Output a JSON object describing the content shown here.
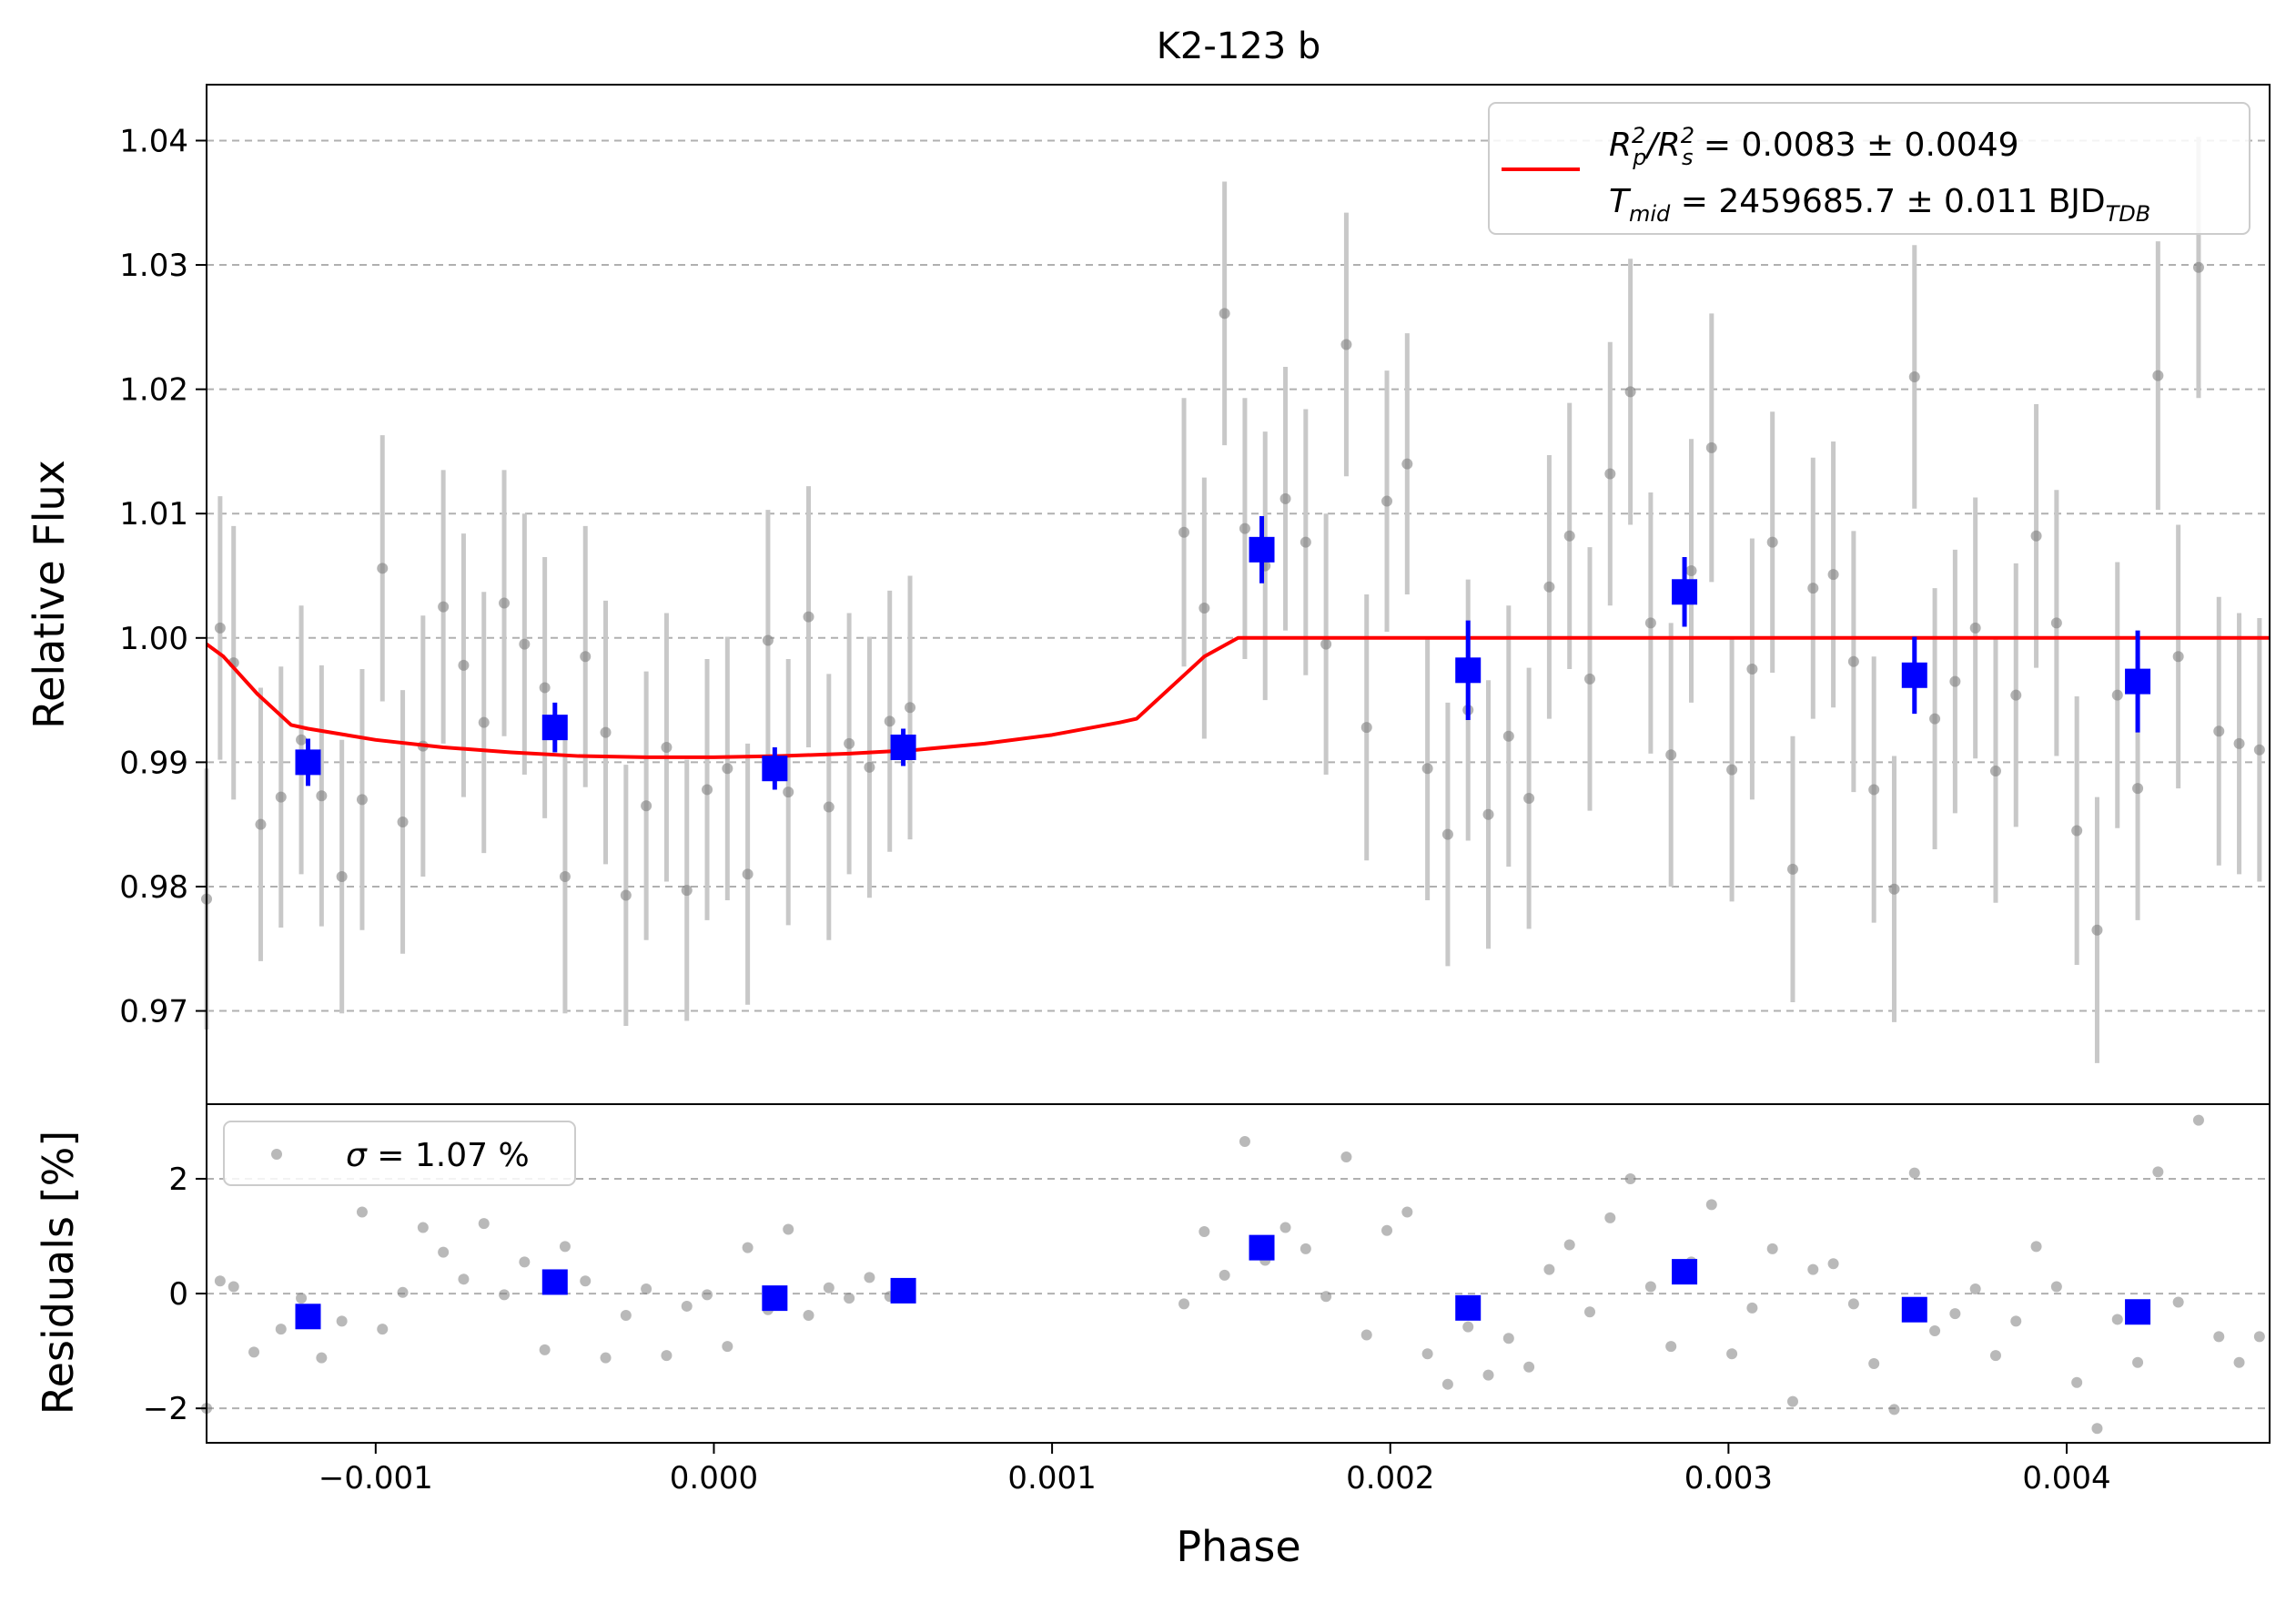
{
  "chart_data": {
    "type": "scatter",
    "title": "K2-123 b",
    "xlabel": "Phase",
    "x_ticks": [
      -0.001,
      0.0,
      0.001,
      0.002,
      0.003,
      0.004
    ],
    "x_tick_labels": [
      "−0.001",
      "0.000",
      "0.001",
      "0.002",
      "0.003",
      "0.004"
    ],
    "xlim": [
      -0.0015,
      0.0046
    ],
    "grid": "horizontal dashed",
    "top_panel": {
      "ylabel": "Relative Flux",
      "ylim": [
        0.9625,
        1.0445
      ],
      "y_ticks": [
        0.97,
        0.98,
        0.99,
        1.0,
        1.01,
        1.02,
        1.03,
        1.04
      ],
      "y_tick_labels": [
        "0.97",
        "0.98",
        "0.99",
        "1.00",
        "1.01",
        "1.02",
        "1.03",
        "1.04"
      ],
      "legend": {
        "placement": "top-right",
        "rp_rs": {
          "R": "R",
          "p": "p",
          "slash": "/",
          "R2": "R",
          "s": "s",
          "sq": "2",
          "rest": " = 0.0083 ± 0.0049"
        },
        "tmid": {
          "T": "T",
          "mid": "mid",
          "rest": " = 2459685.7 ± 0.011 BJD",
          "tdb": "TDB"
        }
      },
      "model": {
        "color": "#ff0000",
        "x": [
          -0.00151,
          -0.00145,
          -0.00135,
          -0.00125,
          -0.0012,
          -0.001,
          -0.0008,
          -0.0006,
          -0.0004,
          -0.0002,
          0.0,
          0.0002,
          0.0004,
          0.0006,
          0.0008,
          0.001,
          0.0012,
          0.00125,
          0.00135,
          0.00145,
          0.00155,
          0.002,
          0.0025,
          0.003,
          0.0035,
          0.004,
          0.0046
        ],
        "y": [
          0.9995,
          0.9985,
          0.9955,
          0.993,
          0.9927,
          0.9918,
          0.9912,
          0.9908,
          0.9905,
          0.9904,
          0.9904,
          0.9905,
          0.9907,
          0.991,
          0.9915,
          0.9922,
          0.9932,
          0.9935,
          0.996,
          0.9985,
          1.0,
          1.0,
          1.0,
          1.0,
          1.0,
          1.0,
          1.0
        ]
      },
      "data": {
        "color": "#808080",
        "err_color": "#c8c8c8",
        "x": [
          -0.0015,
          -0.00146,
          -0.00142,
          -0.00134,
          -0.00128,
          -0.00122,
          -0.00116,
          -0.0011,
          -0.00104,
          -0.00098,
          -0.00092,
          -0.00086,
          -0.0008,
          -0.00074,
          -0.00068,
          -0.00062,
          -0.00056,
          -0.0005,
          -0.00044,
          -0.00038,
          -0.00032,
          -0.00026,
          -0.0002,
          -0.00014,
          -8e-05,
          -2e-05,
          4e-05,
          0.0001,
          0.00016,
          0.00022,
          0.00028,
          0.00034,
          0.0004,
          0.00046,
          0.00052,
          0.00058,
          0.00139,
          0.00145,
          0.00151,
          0.00157,
          0.00163,
          0.00169,
          0.00175,
          0.00181,
          0.00187,
          0.00193,
          0.00199,
          0.00205,
          0.00211,
          0.00217,
          0.00223,
          0.00229,
          0.00235,
          0.00241,
          0.00247,
          0.00253,
          0.00259,
          0.00265,
          0.00271,
          0.00277,
          0.00283,
          0.00289,
          0.00295,
          0.00301,
          0.00307,
          0.00313,
          0.00319,
          0.00325,
          0.00331,
          0.00337,
          0.00343,
          0.00349,
          0.00355,
          0.00361,
          0.00367,
          0.00373,
          0.00379,
          0.00385,
          0.00391,
          0.00397,
          0.00403,
          0.00409,
          0.00415,
          0.00421,
          0.00427,
          0.00433,
          0.00439,
          0.00445,
          0.00451,
          0.00457
        ],
        "y": [
          0.979,
          1.0008,
          0.998,
          0.985,
          0.9872,
          0.9918,
          0.9873,
          0.9808,
          0.987,
          1.0056,
          0.9852,
          0.9913,
          1.0025,
          0.9978,
          0.9932,
          1.0028,
          0.9995,
          0.996,
          0.9808,
          0.9985,
          0.9924,
          0.9793,
          0.9865,
          0.9912,
          0.9797,
          0.9878,
          0.9895,
          0.981,
          0.9998,
          0.9876,
          1.0017,
          0.9864,
          0.9915,
          0.9896,
          0.9933,
          0.9944,
          1.0085,
          1.0024,
          1.0261,
          1.0088,
          1.0058,
          1.0112,
          1.0077,
          0.9995,
          1.0236,
          0.9928,
          1.011,
          1.014,
          0.9895,
          0.9842,
          0.9942,
          0.9858,
          0.9921,
          0.9871,
          1.0041,
          1.0082,
          0.9967,
          1.0132,
          1.0198,
          1.0012,
          0.9906,
          1.0054,
          1.0153,
          0.9894,
          0.9975,
          1.0077,
          0.9814,
          1.004,
          1.0051,
          0.9981,
          0.9878,
          0.9798,
          1.021,
          0.9935,
          0.9965,
          1.0008,
          0.9893,
          0.9954,
          1.0082,
          1.0012,
          0.9845,
          0.9765,
          0.9954,
          0.9879,
          1.0211,
          0.9985,
          1.0298,
          0.9925,
          0.9915,
          0.991
        ],
        "err": [
          0.0105,
          0.0106,
          0.011,
          0.011,
          0.0105,
          0.0108,
          0.0105,
          0.011,
          0.0105,
          0.0107,
          0.0106,
          0.0105,
          0.011,
          0.0106,
          0.0105,
          0.0107,
          0.0105,
          0.0105,
          0.011,
          0.0105,
          0.0106,
          0.0105,
          0.0108,
          0.0108,
          0.0105,
          0.0105,
          0.0106,
          0.0105,
          0.0105,
          0.0107,
          0.0105,
          0.0107,
          0.0105,
          0.0105,
          0.0105,
          0.0106,
          0.0108,
          0.0105,
          0.0106,
          0.0105,
          0.0108,
          0.0106,
          0.0107,
          0.0105,
          0.0106,
          0.0107,
          0.0105,
          0.0105,
          0.0106,
          0.0106,
          0.0105,
          0.0108,
          0.0105,
          0.0105,
          0.0106,
          0.0107,
          0.0106,
          0.0106,
          0.0107,
          0.0105,
          0.0106,
          0.0106,
          0.0108,
          0.0106,
          0.0105,
          0.0105,
          0.0107,
          0.0105,
          0.0107,
          0.0105,
          0.0107,
          0.0107,
          0.0106,
          0.0105,
          0.0106,
          0.0105,
          0.0106,
          0.0106,
          0.0106,
          0.0107,
          0.0108,
          0.0107,
          0.0107,
          0.0106,
          0.0108,
          0.0106,
          0.0105,
          0.0108,
          0.0105,
          0.0106
        ]
      },
      "binned": {
        "color": "#0000ff",
        "x": [
          -0.0012,
          -0.00047,
          0.00018,
          0.00056,
          0.00162,
          0.00223,
          0.00287,
          0.00355,
          0.00421
        ],
        "y": [
          0.99,
          0.9928,
          0.9895,
          0.9912,
          1.0071,
          0.9974,
          1.0037,
          0.997,
          0.9965
        ],
        "err": [
          0.0019,
          0.002,
          0.0017,
          0.0015,
          0.0027,
          0.004,
          0.0028,
          0.0031,
          0.0041
        ]
      }
    },
    "bottom_panel": {
      "ylabel": "Residuals [%]",
      "ylim": [
        -2.6,
        3.3
      ],
      "y_ticks": [
        -2,
        0,
        2
      ],
      "y_tick_labels": [
        "−2",
        "0",
        "2"
      ],
      "legend": {
        "placement": "top-left",
        "sigma": "σ",
        "rest": " = 1.07 %"
      },
      "data": {
        "x": [
          -0.0015,
          -0.00146,
          -0.00142,
          -0.00136,
          -0.00128,
          -0.00122,
          -0.00116,
          -0.0011,
          -0.00104,
          -0.00098,
          -0.00092,
          -0.00086,
          -0.0008,
          -0.00074,
          -0.00068,
          -0.00062,
          -0.00056,
          -0.0005,
          -0.00044,
          -0.00038,
          -0.00032,
          -0.00026,
          -0.0002,
          -0.00014,
          -8e-05,
          -2e-05,
          4e-05,
          0.0001,
          0.00016,
          0.00022,
          0.00028,
          0.00034,
          0.0004,
          0.00046,
          0.00052,
          0.00058,
          0.00139,
          0.00145,
          0.00151,
          0.00157,
          0.00163,
          0.00169,
          0.00175,
          0.00181,
          0.00187,
          0.00193,
          0.00199,
          0.00205,
          0.00211,
          0.00217,
          0.00223,
          0.00229,
          0.00235,
          0.00241,
          0.00247,
          0.00253,
          0.00259,
          0.00265,
          0.00271,
          0.00277,
          0.00283,
          0.00289,
          0.00295,
          0.00301,
          0.00307,
          0.00313,
          0.00319,
          0.00325,
          0.00331,
          0.00337,
          0.00343,
          0.00349,
          0.00355,
          0.00361,
          0.00367,
          0.00373,
          0.00379,
          0.00385,
          0.00391,
          0.00397,
          0.00403,
          0.00409,
          0.00415,
          0.00421,
          0.00427,
          0.00433,
          0.00439,
          0.00445,
          0.00451,
          0.00457
        ],
        "y": [
          -2.0,
          0.22,
          0.12,
          -1.02,
          -0.62,
          -0.08,
          -1.12,
          -0.48,
          1.42,
          -0.62,
          0.02,
          1.15,
          0.72,
          0.25,
          1.22,
          -0.02,
          0.55,
          -0.98,
          0.82,
          0.22,
          -1.12,
          -0.38,
          0.08,
          -1.08,
          -0.22,
          -0.02,
          -0.92,
          0.8,
          -0.28,
          1.12,
          -0.38,
          0.1,
          -0.08,
          0.28,
          -0.05,
          -0.05,
          -0.18,
          1.08,
          0.32,
          2.65,
          0.58,
          1.15,
          0.78,
          -0.05,
          2.38,
          -0.72,
          1.1,
          1.42,
          -1.05,
          -1.58,
          -0.58,
          -1.42,
          -0.78,
          -1.28,
          0.42,
          0.85,
          -0.32,
          1.32,
          2.0,
          0.12,
          -0.92,
          0.55,
          1.55,
          -1.05,
          -0.25,
          0.78,
          -1.88,
          0.42,
          0.52,
          -0.18,
          -1.22,
          -2.02,
          2.1,
          -0.65,
          -0.35,
          0.08,
          -1.08,
          -0.48,
          0.82,
          0.12,
          -1.55,
          -2.35,
          -0.45,
          -1.2,
          2.12,
          -0.15,
          3.02,
          -0.75,
          -1.2,
          -0.75
        ]
      },
      "binned": {
        "x": [
          -0.0012,
          -0.00047,
          0.00018,
          0.00056,
          0.00162,
          0.00223,
          0.00287,
          0.00355,
          0.00421
        ],
        "y": [
          -0.4,
          0.2,
          -0.08,
          0.05,
          0.8,
          -0.25,
          0.38,
          -0.28,
          -0.32
        ]
      }
    }
  }
}
